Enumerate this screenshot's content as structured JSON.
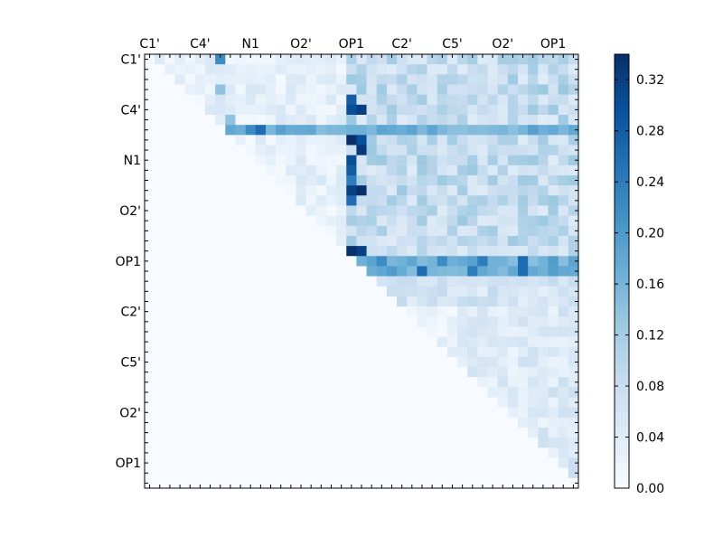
{
  "chart_data": {
    "type": "heatmap",
    "title": "",
    "xlabel": "",
    "ylabel": "",
    "n": 43,
    "upper_triangular": true,
    "tick_labels": [
      "C1'",
      "C4'",
      "N1",
      "O2'",
      "OP1",
      "C2'",
      "C5'",
      "O2'",
      "OP1"
    ],
    "x_tick_labels": [
      "C1'",
      "C4'",
      "N1",
      "O2'",
      "OP1",
      "C2'",
      "C5'",
      "O2'",
      "OP1"
    ],
    "y_tick_labels": [
      "C1'",
      "C4'",
      "N1",
      "O2'",
      "OP1",
      "C2'",
      "C5'",
      "O2'",
      "OP1"
    ],
    "tick_indices": [
      0,
      5,
      10,
      15,
      20,
      25,
      30,
      35,
      40
    ],
    "colormap": "Blues",
    "colorbar": {
      "vmin": 0.0,
      "vmax": 0.34,
      "ticks": [
        0.0,
        0.04,
        0.08,
        0.12,
        0.16,
        0.2,
        0.24,
        0.28,
        0.32
      ],
      "tick_labels": [
        "0.00",
        "0.04",
        "0.08",
        "0.12",
        "0.16",
        "0.20",
        "0.24",
        "0.28",
        "0.32"
      ]
    },
    "highlights": [
      {
        "row": 0,
        "col": 7,
        "value": 0.22
      },
      {
        "row": 3,
        "col": 7,
        "value": 0.14
      },
      {
        "row": 4,
        "col": 20,
        "value": 0.28
      },
      {
        "row": 5,
        "col": 20,
        "value": 0.3
      },
      {
        "row": 5,
        "col": 21,
        "value": 0.32
      },
      {
        "row": 6,
        "col": 8,
        "value": 0.14
      },
      {
        "row": 7,
        "col": 8,
        "value": 0.18
      },
      {
        "row": 7,
        "col": 10,
        "value": 0.22
      },
      {
        "row": 7,
        "col": 11,
        "value": 0.26
      },
      {
        "row": 8,
        "col": 20,
        "value": 0.34
      },
      {
        "row": 8,
        "col": 21,
        "value": 0.3
      },
      {
        "row": 9,
        "col": 21,
        "value": 0.33
      },
      {
        "row": 10,
        "col": 20,
        "value": 0.3
      },
      {
        "row": 11,
        "col": 20,
        "value": 0.28
      },
      {
        "row": 12,
        "col": 20,
        "value": 0.24
      },
      {
        "row": 13,
        "col": 20,
        "value": 0.32
      },
      {
        "row": 13,
        "col": 21,
        "value": 0.34
      },
      {
        "row": 14,
        "col": 20,
        "value": 0.26
      },
      {
        "row": 19,
        "col": 20,
        "value": 0.34
      },
      {
        "row": 19,
        "col": 21,
        "value": 0.32
      },
      {
        "row": 20,
        "col": 23,
        "value": 0.22
      },
      {
        "row": 20,
        "col": 29,
        "value": 0.22
      },
      {
        "row": 20,
        "col": 33,
        "value": 0.24
      },
      {
        "row": 20,
        "col": 37,
        "value": 0.26
      },
      {
        "row": 21,
        "col": 27,
        "value": 0.26
      },
      {
        "row": 21,
        "col": 32,
        "value": 0.24
      },
      {
        "row": 21,
        "col": 37,
        "value": 0.26
      }
    ]
  }
}
